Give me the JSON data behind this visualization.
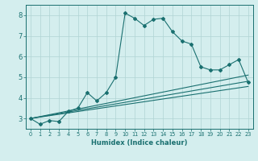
{
  "title": "",
  "xlabel": "Humidex (Indice chaleur)",
  "ylabel": "",
  "bg_color": "#d4eeee",
  "line_color": "#1a7070",
  "grid_color": "#b0d4d4",
  "xlim": [
    -0.5,
    23.5
  ],
  "ylim": [
    2.5,
    8.5
  ],
  "yticks": [
    3,
    4,
    5,
    6,
    7,
    8
  ],
  "xticks": [
    0,
    1,
    2,
    3,
    4,
    5,
    6,
    7,
    8,
    9,
    10,
    11,
    12,
    13,
    14,
    15,
    16,
    17,
    18,
    19,
    20,
    21,
    22,
    23
  ],
  "curve1_x": [
    0,
    1,
    2,
    3,
    4,
    5,
    6,
    7,
    8,
    9,
    10,
    11,
    12,
    13,
    14,
    15,
    16,
    17,
    18,
    19,
    20,
    21,
    22,
    23
  ],
  "curve1_y": [
    3.0,
    2.72,
    2.9,
    2.85,
    3.35,
    3.5,
    4.25,
    3.85,
    4.25,
    5.0,
    8.1,
    7.85,
    7.5,
    7.8,
    7.85,
    7.2,
    6.75,
    6.6,
    5.5,
    5.35,
    5.35,
    5.6,
    5.85,
    4.75
  ],
  "line1_x": [
    0,
    23
  ],
  "line1_y": [
    3.0,
    5.1
  ],
  "line2_x": [
    0,
    23
  ],
  "line2_y": [
    3.0,
    4.55
  ],
  "line3_x": [
    0,
    23
  ],
  "line3_y": [
    3.0,
    4.8
  ]
}
